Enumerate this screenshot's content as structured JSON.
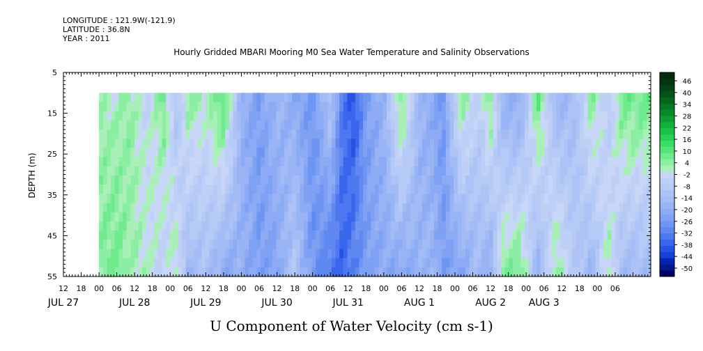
{
  "header": {
    "longitude": "LONGITUDE : 121.9W(-121.9)",
    "latitude": "LATITUDE : 36.8N",
    "year": "YEAR : 2011"
  },
  "chart_data": {
    "type": "heatmap",
    "title": "Hourly Gridded MBARI Mooring M0 Sea Water Temperature and Salinity Observations",
    "subtitle": "U Component of Water Velocity (cm s-1)",
    "ylabel": "DEPTH (m)",
    "xlabel": "",
    "ylim": [
      55,
      5
    ],
    "y_ticks": [
      5,
      15,
      25,
      35,
      45,
      55
    ],
    "data_depth_range": [
      10,
      55
    ],
    "x_range_hours": [
      -18,
      180
    ],
    "data_start_hour": -6,
    "hour_ticks": [
      {
        "h": -18,
        "label": "12"
      },
      {
        "h": -12,
        "label": "18"
      },
      {
        "h": -6,
        "label": "00"
      },
      {
        "h": 0,
        "label": "06"
      },
      {
        "h": 6,
        "label": "12"
      },
      {
        "h": 12,
        "label": "18"
      },
      {
        "h": 18,
        "label": "00"
      },
      {
        "h": 24,
        "label": "06"
      },
      {
        "h": 30,
        "label": "12"
      },
      {
        "h": 36,
        "label": "18"
      },
      {
        "h": 42,
        "label": "00"
      },
      {
        "h": 48,
        "label": "06"
      },
      {
        "h": 54,
        "label": "12"
      },
      {
        "h": 60,
        "label": "18"
      },
      {
        "h": 66,
        "label": "00"
      },
      {
        "h": 72,
        "label": "06"
      },
      {
        "h": 78,
        "label": "12"
      },
      {
        "h": 84,
        "label": "18"
      },
      {
        "h": 90,
        "label": "00"
      },
      {
        "h": 96,
        "label": "06"
      },
      {
        "h": 102,
        "label": "12"
      },
      {
        "h": 108,
        "label": "18"
      },
      {
        "h": 114,
        "label": "00"
      },
      {
        "h": 120,
        "label": "06"
      },
      {
        "h": 126,
        "label": "12"
      },
      {
        "h": 132,
        "label": "18"
      },
      {
        "h": 138,
        "label": "00"
      },
      {
        "h": 144,
        "label": "06"
      },
      {
        "h": 150,
        "label": "12"
      },
      {
        "h": 156,
        "label": "18"
      },
      {
        "h": 162,
        "label": "00"
      },
      {
        "h": 168,
        "label": "06"
      }
    ],
    "day_labels": [
      {
        "h": -18,
        "label": "JUL 27"
      },
      {
        "h": 6,
        "label": "JUL 28"
      },
      {
        "h": 30,
        "label": "JUL 29"
      },
      {
        "h": 54,
        "label": "JUL 30"
      },
      {
        "h": 78,
        "label": "JUL 31"
      },
      {
        "h": 102,
        "label": "AUG  1"
      },
      {
        "h": 126,
        "label": "AUG  2"
      },
      {
        "h": 144,
        "label": "AUG  3"
      }
    ],
    "colorbar": {
      "labels": [
        "46",
        "40",
        "34",
        "28",
        "22",
        "16",
        "10",
        "4",
        "-2",
        "-8",
        "-14",
        "-20",
        "-26",
        "-32",
        "-38",
        "-44",
        "-50"
      ],
      "levels": [
        -50,
        -47,
        -44,
        -41,
        -38,
        -35,
        -32,
        -29,
        -26,
        -23,
        -20,
        -17,
        -14,
        -11,
        -8,
        -5,
        -2,
        1,
        4,
        7,
        10,
        13,
        16,
        19,
        22,
        25,
        28,
        31,
        34,
        37,
        40,
        43,
        46,
        49,
        52
      ],
      "colors": [
        "#000066",
        "#001a8c",
        "#0026b3",
        "#1a3fd9",
        "#2652e6",
        "#3a66ee",
        "#4d78f0",
        "#5f88f1",
        "#6f95f2",
        "#7ea1f3",
        "#8cabf4",
        "#98b4f5",
        "#a3bcf5",
        "#adc3f6",
        "#b6caf6",
        "#bfd0f6",
        "#c8d6f7",
        "#a8f0b8",
        "#8ceea3",
        "#70ea8e",
        "#55e47a",
        "#3ddc68",
        "#28d056",
        "#1ac248",
        "#12b13c",
        "#0c9e32",
        "#088b2a",
        "#067823",
        "#05661d",
        "#045418",
        "#034413",
        "#02360f",
        "#022a0c"
      ]
    },
    "time_nodes": [
      -6,
      0,
      4,
      10,
      16,
      20,
      24,
      30,
      36,
      42,
      48,
      54,
      60,
      66,
      72,
      76,
      80,
      84,
      90,
      96,
      102,
      106,
      110,
      116,
      122,
      126,
      130,
      136,
      142,
      148,
      154,
      160,
      166,
      170
    ],
    "u_surface": [
      4,
      2,
      5,
      -2,
      8,
      -10,
      6,
      2,
      12,
      -16,
      -22,
      -14,
      -18,
      -24,
      -8,
      -30,
      -36,
      -22,
      -16,
      8,
      -14,
      -18,
      -24,
      6,
      -4,
      8,
      -16,
      -18,
      10,
      -14,
      -12,
      6,
      -6,
      8
    ],
    "u_bottom": [
      6,
      8,
      4,
      2,
      -4,
      4,
      -14,
      -10,
      -18,
      -16,
      -22,
      -20,
      -8,
      -24,
      -30,
      -34,
      -28,
      -22,
      -18,
      -20,
      -16,
      -14,
      -22,
      -20,
      -12,
      -18,
      6,
      8,
      -16,
      6,
      -6,
      -14,
      4,
      -12
    ]
  }
}
